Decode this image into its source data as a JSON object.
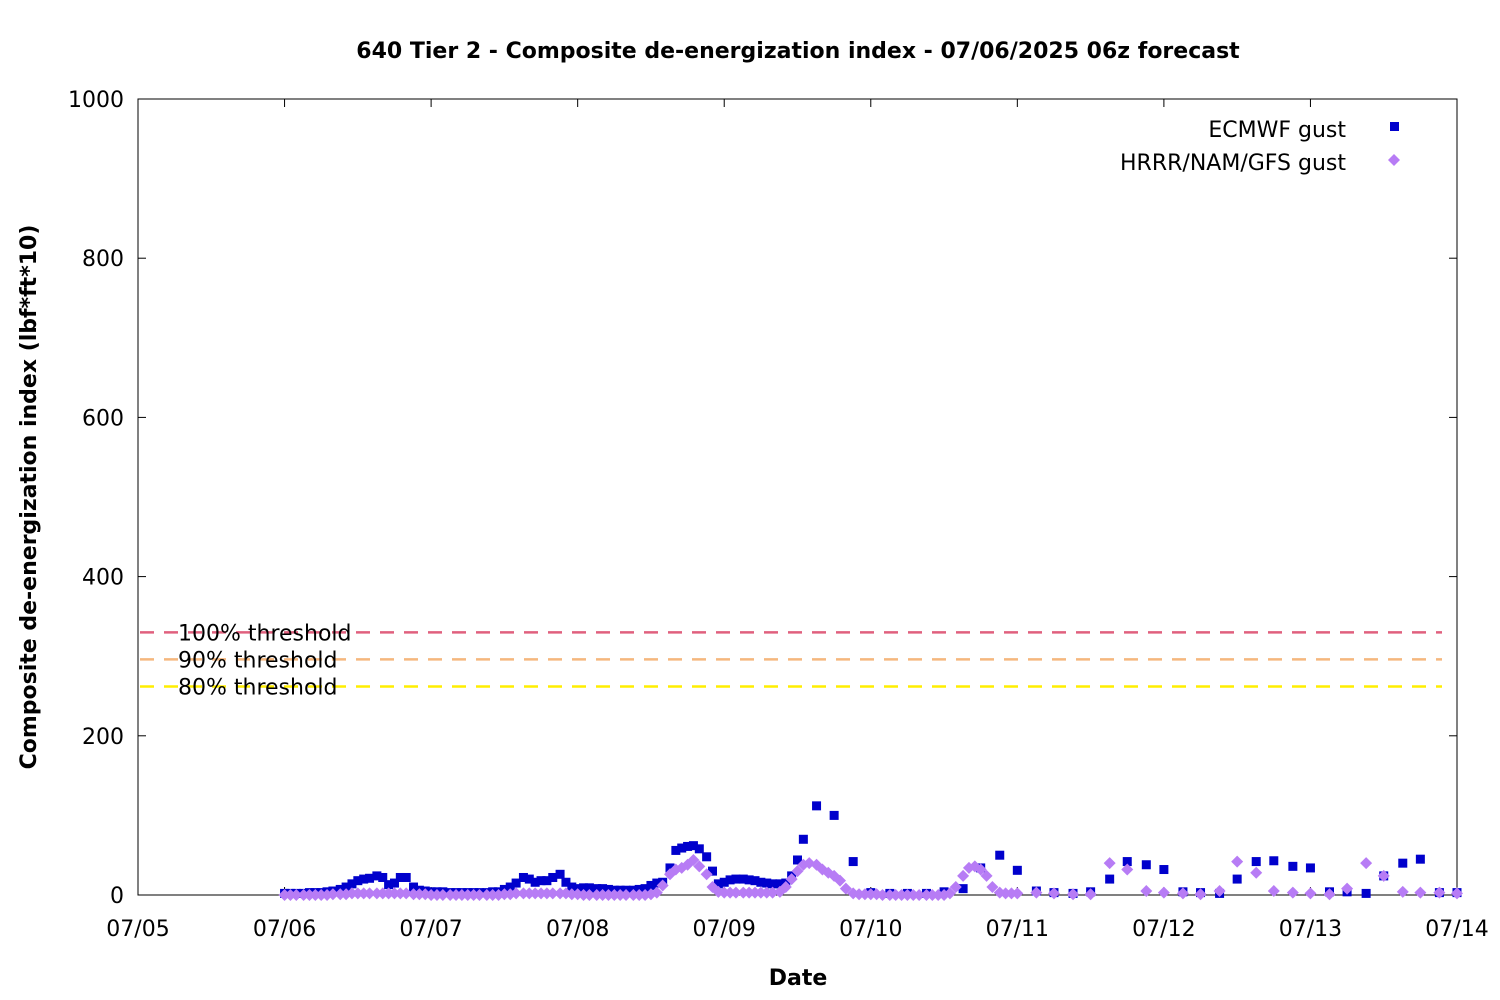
{
  "chart_data": {
    "type": "scatter",
    "title": "640 Tier 2 - Composite de-energization index - 07/06/2025 06z forecast",
    "xlabel": "Date",
    "ylabel": "Composite de-energization index (lbf*ft*10)",
    "x_unit": "days since 07/05 00z",
    "xlim": [
      0,
      9
    ],
    "ylim": [
      0,
      1000
    ],
    "x_ticks": [
      {
        "v": 0,
        "label": "07/05"
      },
      {
        "v": 1,
        "label": "07/06"
      },
      {
        "v": 2,
        "label": "07/07"
      },
      {
        "v": 3,
        "label": "07/08"
      },
      {
        "v": 4,
        "label": "07/09"
      },
      {
        "v": 5,
        "label": "07/10"
      },
      {
        "v": 6,
        "label": "07/11"
      },
      {
        "v": 7,
        "label": "07/12"
      },
      {
        "v": 8,
        "label": "07/13"
      },
      {
        "v": 9,
        "label": "07/14"
      }
    ],
    "y_ticks": [
      {
        "v": 0,
        "label": "0"
      },
      {
        "v": 200,
        "label": "200"
      },
      {
        "v": 400,
        "label": "400"
      },
      {
        "v": 600,
        "label": "600"
      },
      {
        "v": 800,
        "label": "800"
      },
      {
        "v": 1000,
        "label": "1000"
      }
    ],
    "grid": false,
    "legend_position": "top-right",
    "thresholds": [
      {
        "name": "100% threshold",
        "value": 330,
        "color": "#e0607e"
      },
      {
        "name": "90% threshold",
        "value": 296,
        "color": "#f5b77e"
      },
      {
        "name": "80% threshold",
        "value": 262,
        "color": "#ffee00"
      }
    ],
    "series": [
      {
        "name": "ECMWF gust",
        "marker": "square",
        "color": "#0000cc",
        "points": [
          [
            1.0,
            2
          ],
          [
            1.04,
            2
          ],
          [
            1.08,
            2
          ],
          [
            1.13,
            2
          ],
          [
            1.17,
            3
          ],
          [
            1.21,
            3
          ],
          [
            1.25,
            3
          ],
          [
            1.29,
            4
          ],
          [
            1.33,
            5
          ],
          [
            1.38,
            7
          ],
          [
            1.42,
            10
          ],
          [
            1.46,
            14
          ],
          [
            1.5,
            18
          ],
          [
            1.54,
            20
          ],
          [
            1.58,
            21
          ],
          [
            1.63,
            24
          ],
          [
            1.67,
            22
          ],
          [
            1.71,
            13
          ],
          [
            1.75,
            15
          ],
          [
            1.79,
            22
          ],
          [
            1.83,
            22
          ],
          [
            1.88,
            10
          ],
          [
            1.92,
            6
          ],
          [
            1.96,
            5
          ],
          [
            2.0,
            4
          ],
          [
            2.04,
            4
          ],
          [
            2.08,
            4
          ],
          [
            2.13,
            3
          ],
          [
            2.17,
            3
          ],
          [
            2.21,
            3
          ],
          [
            2.25,
            3
          ],
          [
            2.29,
            3
          ],
          [
            2.33,
            3
          ],
          [
            2.38,
            3
          ],
          [
            2.42,
            4
          ],
          [
            2.46,
            4
          ],
          [
            2.5,
            7
          ],
          [
            2.54,
            10
          ],
          [
            2.58,
            15
          ],
          [
            2.63,
            22
          ],
          [
            2.67,
            20
          ],
          [
            2.71,
            16
          ],
          [
            2.75,
            18
          ],
          [
            2.79,
            18
          ],
          [
            2.83,
            22
          ],
          [
            2.88,
            26
          ],
          [
            2.92,
            16
          ],
          [
            2.96,
            10
          ],
          [
            3.0,
            8
          ],
          [
            3.04,
            9
          ],
          [
            3.08,
            9
          ],
          [
            3.13,
            8
          ],
          [
            3.17,
            8
          ],
          [
            3.21,
            7
          ],
          [
            3.25,
            6
          ],
          [
            3.29,
            6
          ],
          [
            3.33,
            6
          ],
          [
            3.38,
            6
          ],
          [
            3.42,
            7
          ],
          [
            3.46,
            8
          ],
          [
            3.5,
            12
          ],
          [
            3.54,
            15
          ],
          [
            3.58,
            16
          ],
          [
            3.63,
            34
          ],
          [
            3.67,
            56
          ],
          [
            3.71,
            59
          ],
          [
            3.75,
            61
          ],
          [
            3.79,
            62
          ],
          [
            3.83,
            58
          ],
          [
            3.88,
            48
          ],
          [
            3.92,
            30
          ],
          [
            3.96,
            14
          ],
          [
            4.0,
            16
          ],
          [
            4.04,
            19
          ],
          [
            4.08,
            20
          ],
          [
            4.13,
            20
          ],
          [
            4.17,
            19
          ],
          [
            4.21,
            18
          ],
          [
            4.25,
            16
          ],
          [
            4.29,
            15
          ],
          [
            4.33,
            14
          ],
          [
            4.38,
            14
          ],
          [
            4.42,
            15
          ],
          [
            4.46,
            24
          ],
          [
            4.5,
            44
          ],
          [
            4.54,
            70
          ],
          [
            4.63,
            112
          ],
          [
            4.75,
            100
          ],
          [
            4.88,
            42
          ],
          [
            5.0,
            3
          ],
          [
            5.13,
            2
          ],
          [
            5.25,
            2
          ],
          [
            5.38,
            2
          ],
          [
            5.5,
            4
          ],
          [
            5.63,
            8
          ],
          [
            5.75,
            34
          ],
          [
            5.88,
            50
          ],
          [
            6.0,
            31
          ],
          [
            6.13,
            5
          ],
          [
            6.25,
            3
          ],
          [
            6.38,
            2
          ],
          [
            6.5,
            4
          ],
          [
            6.63,
            20
          ],
          [
            6.75,
            42
          ],
          [
            6.88,
            38
          ],
          [
            7.0,
            32
          ],
          [
            7.13,
            4
          ],
          [
            7.25,
            3
          ],
          [
            7.38,
            2
          ],
          [
            7.5,
            20
          ],
          [
            7.63,
            42
          ],
          [
            7.75,
            43
          ],
          [
            7.88,
            36
          ],
          [
            8.0,
            34
          ],
          [
            8.13,
            4
          ],
          [
            8.25,
            4
          ],
          [
            8.38,
            2
          ],
          [
            8.5,
            24
          ],
          [
            8.63,
            40
          ],
          [
            8.75,
            45
          ],
          [
            8.88,
            3
          ],
          [
            9.0,
            3
          ]
        ]
      },
      {
        "name": "HRRR/NAM/GFS gust",
        "marker": "diamond",
        "color": "#b77cf5",
        "points": [
          [
            1.0,
            0
          ],
          [
            1.04,
            0
          ],
          [
            1.08,
            0
          ],
          [
            1.13,
            0
          ],
          [
            1.17,
            0
          ],
          [
            1.21,
            0
          ],
          [
            1.25,
            0
          ],
          [
            1.29,
            0
          ],
          [
            1.33,
            1
          ],
          [
            1.38,
            1
          ],
          [
            1.42,
            1
          ],
          [
            1.46,
            2
          ],
          [
            1.5,
            2
          ],
          [
            1.54,
            2
          ],
          [
            1.58,
            2
          ],
          [
            1.63,
            2
          ],
          [
            1.67,
            2
          ],
          [
            1.71,
            2
          ],
          [
            1.75,
            2
          ],
          [
            1.79,
            2
          ],
          [
            1.83,
            2
          ],
          [
            1.88,
            1
          ],
          [
            1.92,
            1
          ],
          [
            1.96,
            1
          ],
          [
            2.0,
            0
          ],
          [
            2.04,
            0
          ],
          [
            2.08,
            0
          ],
          [
            2.13,
            0
          ],
          [
            2.17,
            0
          ],
          [
            2.21,
            0
          ],
          [
            2.25,
            0
          ],
          [
            2.29,
            0
          ],
          [
            2.33,
            0
          ],
          [
            2.38,
            0
          ],
          [
            2.42,
            0
          ],
          [
            2.46,
            0
          ],
          [
            2.5,
            1
          ],
          [
            2.54,
            1
          ],
          [
            2.58,
            2
          ],
          [
            2.63,
            2
          ],
          [
            2.67,
            2
          ],
          [
            2.71,
            2
          ],
          [
            2.75,
            2
          ],
          [
            2.79,
            2
          ],
          [
            2.83,
            2
          ],
          [
            2.88,
            2
          ],
          [
            2.92,
            2
          ],
          [
            2.96,
            1
          ],
          [
            3.0,
            1
          ],
          [
            3.04,
            0
          ],
          [
            3.08,
            0
          ],
          [
            3.13,
            0
          ],
          [
            3.17,
            0
          ],
          [
            3.21,
            0
          ],
          [
            3.25,
            0
          ],
          [
            3.29,
            0
          ],
          [
            3.33,
            0
          ],
          [
            3.38,
            0
          ],
          [
            3.42,
            0
          ],
          [
            3.46,
            0
          ],
          [
            3.5,
            1
          ],
          [
            3.54,
            3
          ],
          [
            3.58,
            12
          ],
          [
            3.63,
            26
          ],
          [
            3.67,
            32
          ],
          [
            3.71,
            34
          ],
          [
            3.75,
            38
          ],
          [
            3.79,
            44
          ],
          [
            3.83,
            36
          ],
          [
            3.88,
            26
          ],
          [
            3.92,
            10
          ],
          [
            3.96,
            4
          ],
          [
            4.0,
            3
          ],
          [
            4.04,
            3
          ],
          [
            4.08,
            3
          ],
          [
            4.13,
            3
          ],
          [
            4.17,
            3
          ],
          [
            4.21,
            3
          ],
          [
            4.25,
            3
          ],
          [
            4.29,
            3
          ],
          [
            4.33,
            3
          ],
          [
            4.38,
            4
          ],
          [
            4.42,
            10
          ],
          [
            4.46,
            20
          ],
          [
            4.5,
            30
          ],
          [
            4.54,
            38
          ],
          [
            4.58,
            40
          ],
          [
            4.63,
            38
          ],
          [
            4.67,
            32
          ],
          [
            4.71,
            28
          ],
          [
            4.75,
            24
          ],
          [
            4.79,
            18
          ],
          [
            4.83,
            8
          ],
          [
            4.88,
            2
          ],
          [
            4.92,
            1
          ],
          [
            4.96,
            1
          ],
          [
            5.0,
            1
          ],
          [
            5.04,
            1
          ],
          [
            5.08,
            0
          ],
          [
            5.13,
            0
          ],
          [
            5.17,
            0
          ],
          [
            5.21,
            0
          ],
          [
            5.25,
            0
          ],
          [
            5.29,
            0
          ],
          [
            5.33,
            0
          ],
          [
            5.38,
            0
          ],
          [
            5.42,
            0
          ],
          [
            5.46,
            0
          ],
          [
            5.5,
            0
          ],
          [
            5.54,
            2
          ],
          [
            5.58,
            10
          ],
          [
            5.63,
            24
          ],
          [
            5.67,
            34
          ],
          [
            5.71,
            36
          ],
          [
            5.75,
            32
          ],
          [
            5.79,
            24
          ],
          [
            5.83,
            10
          ],
          [
            5.88,
            3
          ],
          [
            5.92,
            2
          ],
          [
            5.96,
            2
          ],
          [
            6.0,
            2
          ],
          [
            6.13,
            3
          ],
          [
            6.25,
            2
          ],
          [
            6.38,
            1
          ],
          [
            6.5,
            1
          ],
          [
            6.63,
            40
          ],
          [
            6.75,
            32
          ],
          [
            6.88,
            5
          ],
          [
            7.0,
            3
          ],
          [
            7.13,
            2
          ],
          [
            7.25,
            1
          ],
          [
            7.38,
            5
          ],
          [
            7.5,
            42
          ],
          [
            7.63,
            28
          ],
          [
            7.75,
            5
          ],
          [
            7.88,
            3
          ],
          [
            8.0,
            2
          ],
          [
            8.13,
            1
          ],
          [
            8.25,
            8
          ],
          [
            8.38,
            40
          ],
          [
            8.5,
            24
          ],
          [
            8.63,
            4
          ],
          [
            8.75,
            3
          ],
          [
            8.88,
            3
          ],
          [
            9.0,
            2
          ]
        ]
      }
    ]
  }
}
